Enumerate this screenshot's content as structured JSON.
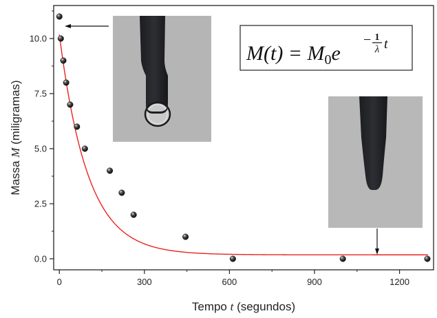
{
  "chart_data": {
    "type": "scatter",
    "title": "",
    "xlabel": {
      "prefix": "Tempo ",
      "symbol": "t",
      "suffix": " (segundos)"
    },
    "ylabel": {
      "prefix": "Massa ",
      "symbol": "M",
      "suffix": " (miligramas)"
    },
    "xlim": [
      -20,
      1320
    ],
    "ylim": [
      -0.5,
      11.5
    ],
    "xticks": [
      0,
      300,
      600,
      900,
      1200
    ],
    "yticks": [
      0.0,
      2.5,
      5.0,
      7.5,
      10.0
    ],
    "ytick_labels": [
      "0.0",
      "2.5",
      "5.0",
      "7.5",
      "10.0"
    ],
    "series": [
      {
        "marker": "sphere",
        "color": "#111111",
        "points": [
          {
            "x": 0,
            "y": 11
          },
          {
            "x": 5,
            "y": 10
          },
          {
            "x": 14,
            "y": 9
          },
          {
            "x": 24,
            "y": 8
          },
          {
            "x": 38,
            "y": 7
          },
          {
            "x": 62,
            "y": 6
          },
          {
            "x": 90,
            "y": 5
          },
          {
            "x": 178,
            "y": 4
          },
          {
            "x": 220,
            "y": 3
          },
          {
            "x": 262,
            "y": 2
          },
          {
            "x": 445,
            "y": 1
          },
          {
            "x": 612,
            "y": 0
          },
          {
            "x": 1000,
            "y": 0
          },
          {
            "x": 1298,
            "y": 0
          }
        ]
      },
      {
        "type": "line",
        "color": "#e8231f",
        "model": "exponential_decay",
        "M0": 10,
        "lambda": 100,
        "offset": 0.18,
        "x_range": [
          0,
          1300
        ]
      }
    ],
    "equation": {
      "lhs": "M(t) = M",
      "sub": "0",
      "base": "e",
      "exp_sign": "−",
      "frac_num": "1",
      "frac_den": "λ",
      "exp_var": "t"
    }
  },
  "colors": {
    "axis": "#222222",
    "fit": "#e8231f",
    "marker": "#111111"
  }
}
